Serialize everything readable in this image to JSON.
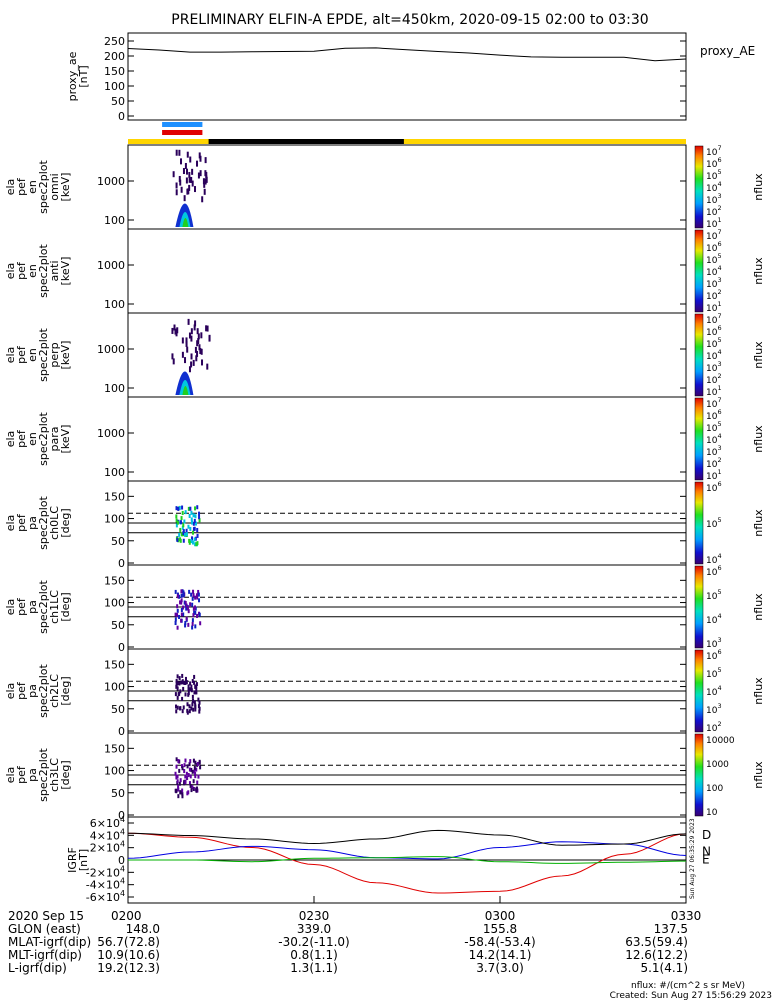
{
  "title": "PRELIMINARY ELFIN-A EPDE, alt=450km, 2020-09-15 02:00 to 03:30",
  "time_axis": {
    "date_label": "2020 Sep 15",
    "ticks": [
      "0200",
      "0230",
      "0300",
      "0330"
    ],
    "rows": [
      {
        "label": "GLON (east)",
        "values": [
          "148.0",
          "339.0",
          "155.8",
          "137.5"
        ]
      },
      {
        "label": "MLAT-igrf(dip)",
        "values": [
          "56.7(72.8)",
          "-30.2(-11.0)",
          "-58.4(-53.4)",
          "63.5(59.4)"
        ]
      },
      {
        "label": "MLT-igrf(dip)",
        "values": [
          "10.9(10.6)",
          "0.8(1.1)",
          "14.2(14.1)",
          "12.6(12.2)"
        ]
      },
      {
        "label": "L-igrf(dip)",
        "values": [
          "19.2(12.3)",
          "1.3(1.1)",
          "3.7(3.0)",
          "5.1(4.1)"
        ]
      }
    ]
  },
  "footer": {
    "units_note": "nflux: #/(cm^2 s sr MeV)",
    "created": "Created: Sun Aug 27 15:56:29 2023",
    "side_stamp": "Sun Aug 27 06:35:29 2023"
  },
  "chart_data": [
    {
      "type": "line",
      "name": "proxy_ae",
      "ylabel": [
        "proxy_ae",
        "[nT]"
      ],
      "yticks": [
        "250",
        "200",
        "150",
        "100",
        "50",
        "0"
      ],
      "ylim": [
        0,
        270
      ],
      "legend": "proxy_AE",
      "x": [
        0,
        5,
        10,
        15,
        20,
        25,
        30,
        35,
        40,
        45,
        50,
        55,
        60,
        65,
        70,
        75,
        80,
        85,
        90
      ],
      "y": [
        225,
        220,
        213,
        213,
        214,
        215,
        216,
        226,
        227,
        221,
        215,
        210,
        203,
        197,
        196,
        196,
        196,
        184,
        190
      ],
      "x_unit": "minutes after 0200"
    },
    {
      "type": "heatmap",
      "name": "ela_pef_en_spec2plot_omni",
      "ylabel": [
        "ela",
        "pef",
        "en",
        "spec2plot",
        "omni",
        "[keV]"
      ],
      "yticks": [
        "1000",
        "100"
      ],
      "colorbar": {
        "label": "nflux",
        "ticks": [
          "10^7",
          "10^6",
          "10^5",
          "10^4",
          "10^3",
          "10^2",
          "10^1"
        ]
      },
      "activity_window_minutes": [
        7,
        13
      ]
    },
    {
      "type": "heatmap",
      "name": "ela_pef_en_spec2plot_anti",
      "ylabel": [
        "ela",
        "pef",
        "en",
        "spec2plot",
        "anti",
        "[keV]"
      ],
      "yticks": [
        "1000",
        "100"
      ],
      "colorbar": {
        "label": "nflux",
        "ticks": [
          "10^7",
          "10^6",
          "10^5",
          "10^4",
          "10^3",
          "10^2",
          "10^1"
        ]
      }
    },
    {
      "type": "heatmap",
      "name": "ela_pef_en_spec2plot_perp",
      "ylabel": [
        "ela",
        "pef",
        "en",
        "spec2plot",
        "perp",
        "[keV]"
      ],
      "yticks": [
        "1000",
        "100"
      ],
      "colorbar": {
        "label": "nflux",
        "ticks": [
          "10^7",
          "10^6",
          "10^5",
          "10^4",
          "10^3",
          "10^2",
          "10^1"
        ]
      },
      "activity_window_minutes": [
        7,
        13
      ]
    },
    {
      "type": "heatmap",
      "name": "ela_pef_en_spec2plot_para",
      "ylabel": [
        "ela",
        "pef",
        "en",
        "spec2plot",
        "para",
        "[keV]"
      ],
      "yticks": [
        "1000",
        "100"
      ],
      "colorbar": {
        "label": "nflux",
        "ticks": [
          "10^7",
          "10^6",
          "10^5",
          "10^4",
          "10^3",
          "10^2",
          "10^1"
        ]
      }
    },
    {
      "type": "heatmap",
      "name": "ela_pef_pa_spec2plot_ch0LC",
      "ylabel": [
        "ela",
        "pef",
        "pa",
        "spec2plot",
        "ch0LC",
        "[deg]"
      ],
      "yticks": [
        "150",
        "100",
        "50",
        "0"
      ],
      "colorbar": {
        "label": "nflux",
        "ticks": [
          "10^6",
          "10^5",
          "10^4"
        ]
      }
    },
    {
      "type": "heatmap",
      "name": "ela_pef_pa_spec2plot_ch1LC",
      "ylabel": [
        "ela",
        "pef",
        "pa",
        "spec2plot",
        "ch1LC",
        "[deg]"
      ],
      "yticks": [
        "150",
        "100",
        "50",
        "0"
      ],
      "colorbar": {
        "label": "nflux",
        "ticks": [
          "10^6",
          "10^5",
          "10^4",
          "10^3"
        ]
      }
    },
    {
      "type": "heatmap",
      "name": "ela_pef_pa_spec2plot_ch2LC",
      "ylabel": [
        "ela",
        "pef",
        "pa",
        "spec2plot",
        "ch2LC",
        "[deg]"
      ],
      "yticks": [
        "150",
        "100",
        "50",
        "0"
      ],
      "colorbar": {
        "label": "nflux",
        "ticks": [
          "10^6",
          "10^5",
          "10^4",
          "10^3",
          "10^2"
        ]
      }
    },
    {
      "type": "heatmap",
      "name": "ela_pef_pa_spec2plot_ch3LC",
      "ylabel": [
        "ela",
        "pef",
        "pa",
        "spec2plot",
        "ch3LC",
        "[deg]"
      ],
      "yticks": [
        "150",
        "100",
        "50",
        "0"
      ],
      "colorbar": {
        "label": "nflux",
        "ticks": [
          "10000",
          "1000",
          "100",
          "10"
        ]
      }
    },
    {
      "type": "line",
      "name": "IGRF",
      "ylabel": [
        "IGRF",
        "[nT]"
      ],
      "yticks": [
        "6×10^4",
        "4×10^4",
        "2×10^4",
        "0",
        "-2×10^4",
        "-4×10^4",
        "-6×10^4"
      ],
      "ylim": [
        -65000,
        65000
      ],
      "x": [
        0,
        10,
        20,
        30,
        40,
        50,
        60,
        70,
        80,
        90
      ],
      "series": [
        {
          "name": "D",
          "color": "#e00000",
          "values": [
            47000,
            40000,
            22000,
            -8000,
            -40000,
            -58000,
            -55000,
            -28000,
            10000,
            46000
          ]
        },
        {
          "name": "N",
          "color": "#0000e0",
          "values": [
            3000,
            14000,
            24000,
            18000,
            4000,
            2000,
            22000,
            32000,
            28000,
            8000
          ]
        },
        {
          "name": "E",
          "color": "#00b000",
          "values": [
            0,
            0,
            -3000,
            3000,
            4000,
            6000,
            -3000,
            -6000,
            -4000,
            -2000
          ]
        },
        {
          "name": "",
          "color": "#000000",
          "values": [
            47000,
            43000,
            37000,
            29000,
            37000,
            52000,
            44000,
            26000,
            28000,
            46000
          ]
        }
      ]
    }
  ]
}
